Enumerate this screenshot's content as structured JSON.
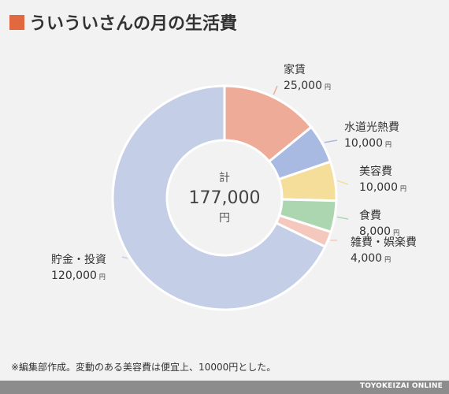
{
  "header": {
    "title": "ういういさんの月の生活費",
    "accent_color": "#e2683f"
  },
  "chart_data": {
    "type": "pie",
    "variant": "donut",
    "title": "ういういさんの月の生活費",
    "center_label": {
      "top": "計",
      "value": "177,000",
      "unit": "円"
    },
    "unit": "円",
    "slices": [
      {
        "name": "家賃",
        "value": 25000,
        "value_label": "25,000",
        "color": "#eeab98"
      },
      {
        "name": "水道光熱費",
        "value": 10000,
        "value_label": "10,000",
        "color": "#a8b9e2"
      },
      {
        "name": "美容費",
        "value": 10000,
        "value_label": "10,000",
        "color": "#f5dd9a"
      },
      {
        "name": "食費",
        "value": 8000,
        "value_label": "8,000",
        "color": "#acd6b0"
      },
      {
        "name": "雑費・娯楽費",
        "value": 4000,
        "value_label": "4,000",
        "color": "#f5c8bd"
      },
      {
        "name": "貯金・投資",
        "value": 120000,
        "value_label": "120,000",
        "color": "#c4cee6"
      }
    ],
    "total": 177000
  },
  "footnote": "※編集部作成。変動のある美容費は便宜上、10000円とした。",
  "footer": {
    "brand": "TOYOKEIZAI ONLINE",
    "bar_color": "#8c8c8c"
  }
}
